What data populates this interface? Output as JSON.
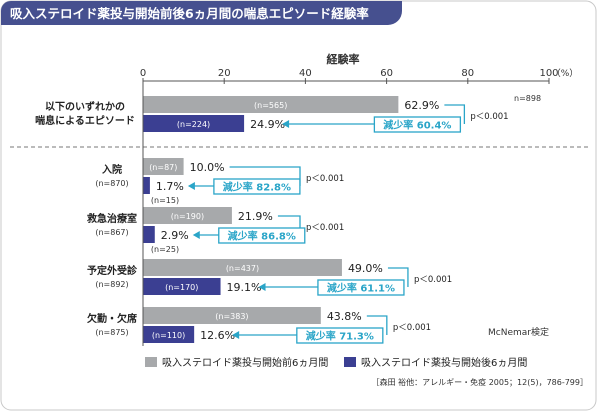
{
  "header": {
    "title": "吸入ステロイド薬投与開始前後6ヵ月間の喘息エピソード経験率"
  },
  "chart_data": {
    "type": "bar",
    "orientation": "horizontal",
    "xlabel": "経験率",
    "x_unit": "（%）",
    "xlim": [
      0,
      100
    ],
    "xticks": [
      0,
      20,
      40,
      60,
      80,
      100
    ],
    "legend_position": "bottom",
    "series": [
      {
        "name": "吸入ステロイド薬投与開始前6ヵ月間"
      },
      {
        "name": "吸入ステロイド薬投与開始後6ヵ月間"
      }
    ],
    "categories": [
      {
        "label": [
          "以下のいずれかの",
          "喘息によるエピソード"
        ],
        "n_label": "",
        "total_n": "n=898",
        "before": 62.9,
        "before_label": "62.9%",
        "before_n": "(n=565)",
        "after": 24.9,
        "after_label": "24.9%",
        "after_n": "(n=224)",
        "reduction": "減少率 60.4%",
        "p": "p＜0.001"
      },
      {
        "label": [
          "入院"
        ],
        "n_label": "(n=870)",
        "total_n": "",
        "before": 10.0,
        "before_label": "10.0%",
        "before_n": "(n=87)",
        "after": 1.7,
        "after_label": "1.7%",
        "after_n": "(n=15)",
        "reduction": "減少率 82.8%",
        "p": "p＜0.001"
      },
      {
        "label": [
          "救急治療室"
        ],
        "n_label": "(n=867)",
        "total_n": "",
        "before": 21.9,
        "before_label": "21.9%",
        "before_n": "(n=190)",
        "after": 2.9,
        "after_label": "2.9%",
        "after_n": "(n=25)",
        "reduction": "減少率 86.8%",
        "p": "p＜0.001"
      },
      {
        "label": [
          "予定外受診"
        ],
        "n_label": "(n=892)",
        "total_n": "",
        "before": 49.0,
        "before_label": "49.0%",
        "before_n": "(n=437)",
        "after": 19.1,
        "after_label": "19.1%",
        "after_n": "(n=170)",
        "reduction": "減少率 61.1%",
        "p": "p＜0.001"
      },
      {
        "label": [
          "欠勤・欠席"
        ],
        "n_label": "(n=875)",
        "total_n": "",
        "before": 43.8,
        "before_label": "43.8%",
        "before_n": "(n=383)",
        "after": 12.6,
        "after_label": "12.6%",
        "after_n": "(n=110)",
        "reduction": "減少率 71.3%",
        "p": "p＜0.001"
      }
    ],
    "test_note": "McNemar検定",
    "colors": {
      "before": "#a7a9ab",
      "after": "#3b3f92",
      "reduction": "#2aa5c8",
      "title_bg": "#46508f"
    }
  },
  "footer": {
    "citation": "［森田 裕他：アレルギー・免疫 2005；12(5)，786-799］"
  }
}
